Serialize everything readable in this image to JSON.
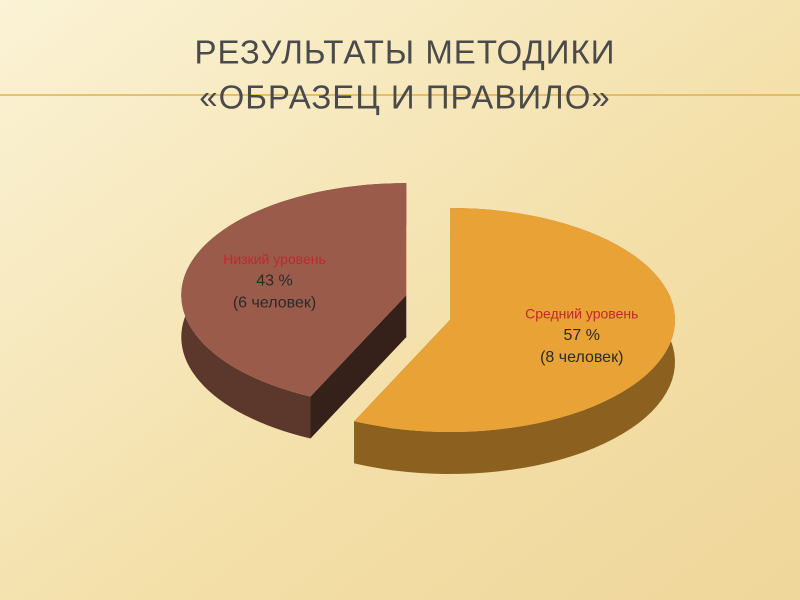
{
  "chart_data": {
    "type": "pie",
    "title": [
      "РЕЗУЛЬТАТЫ  МЕТОДИКИ",
      "«ОБРАЗЕЦ И ПРАВИЛО»"
    ],
    "categories": [
      "Средний уровень",
      "Низкий уровень"
    ],
    "values": [
      57,
      43
    ],
    "value_labels": [
      "57 %",
      "43 %"
    ],
    "counts": [
      8,
      6
    ],
    "count_labels": [
      "(8 человек)",
      "(6 человек)"
    ],
    "colors": [
      "#e9a235",
      "#9a5b4a"
    ]
  }
}
